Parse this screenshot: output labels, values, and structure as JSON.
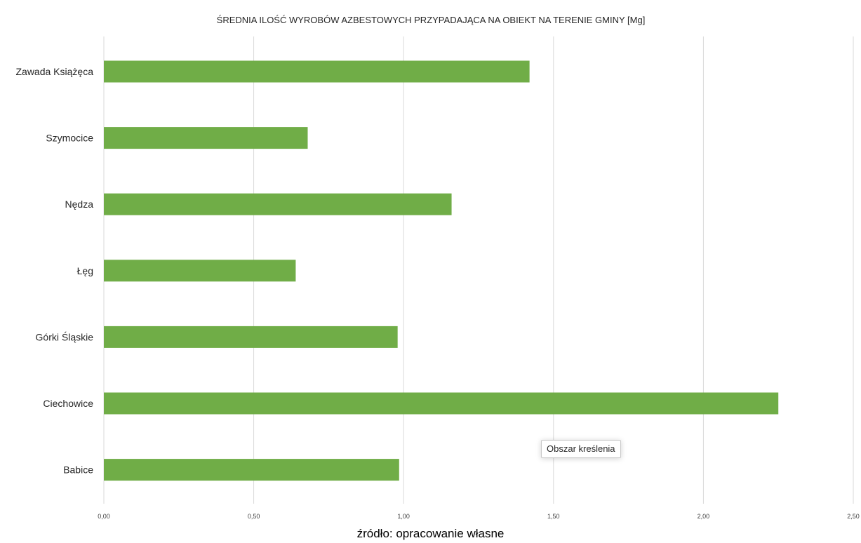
{
  "chart_data": {
    "type": "bar",
    "orientation": "horizontal",
    "title": "ŚREDNIA ILOŚĆ WYROBÓW AZBESTOWYCH PRZYPADAJĄCA NA OBIEKT NA TERENIE GMINY [Mg]",
    "categories": [
      "Zawada Książęca",
      "Szymocice",
      "Nędza",
      "Łęg",
      "Górki Śląskie",
      "Ciechowice",
      "Babice"
    ],
    "values": [
      1.42,
      0.68,
      1.16,
      0.64,
      0.98,
      2.25,
      0.985
    ],
    "xlabel": "",
    "ylabel": "",
    "xlim": [
      0,
      2.5
    ],
    "ticks": [
      {
        "value": 0,
        "label": "0,00"
      },
      {
        "value": 0.5,
        "label": "0,50"
      },
      {
        "value": 1,
        "label": "1,00"
      },
      {
        "value": 1.5,
        "label": "1,50"
      },
      {
        "value": 2,
        "label": "2,00"
      },
      {
        "value": 2.5,
        "label": "2,50"
      }
    ],
    "grid": true,
    "legend": "none",
    "bar_color": "#70ad47"
  },
  "tooltip": {
    "text": "Obszar kreślenia"
  },
  "caption": {
    "text": "źródło: opracowanie własne"
  }
}
